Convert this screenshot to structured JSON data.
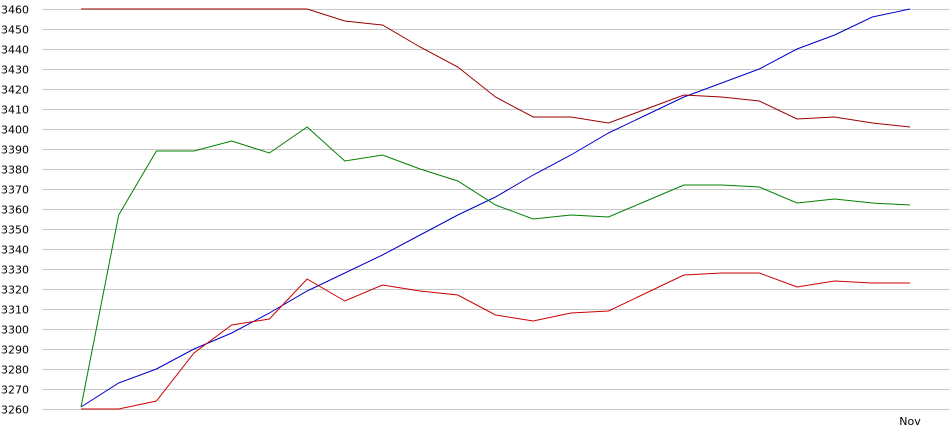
{
  "chart_data": {
    "type": "line",
    "title": "",
    "xlabel": "",
    "ylabel": "",
    "ylim": [
      3260,
      3460
    ],
    "ytick_step": 10,
    "grid": "horizontal",
    "x": [
      1,
      2,
      3,
      4,
      5,
      6,
      7,
      8,
      9,
      10,
      11,
      12,
      13,
      14,
      15,
      16,
      17,
      18,
      19,
      20,
      21,
      22,
      23
    ],
    "xlim": [
      1,
      23
    ],
    "x_tick_labels": [
      {
        "x": 23,
        "label": "Nov"
      }
    ],
    "series": [
      {
        "color": "#0000cc",
        "values": [
          3261,
          3273,
          3280,
          3290,
          3298,
          3308,
          3319,
          3328,
          3337,
          3347,
          3357,
          3366,
          3377,
          3387,
          3398,
          3407,
          3416,
          3423,
          3430,
          3440,
          3447,
          3456,
          3460
        ]
      },
      {
        "color": "#990000",
        "values": [
          3460,
          3460,
          3460,
          3460,
          3460,
          3460,
          3460,
          3454,
          3452,
          3441,
          3431,
          3416,
          3406,
          3406,
          3403,
          3410,
          3417,
          3416,
          3414,
          3405,
          3406,
          3403,
          3401
        ]
      },
      {
        "color": "#008000",
        "values": [
          3261,
          3357,
          3389,
          3389,
          3394,
          3388,
          3401,
          3384,
          3387,
          3380,
          3374,
          3362,
          3355,
          3357,
          3356,
          3364,
          3372,
          3372,
          3371,
          3363,
          3365,
          3363,
          3362
        ]
      },
      {
        "color": "#cc0000",
        "values": [
          3260,
          3260,
          3264,
          3288,
          3302,
          3305,
          3325,
          3314,
          3322,
          3319,
          3317,
          3307,
          3304,
          3308,
          3309,
          3318,
          3327,
          3328,
          3328,
          3321,
          3324,
          3323,
          3323
        ]
      }
    ]
  }
}
